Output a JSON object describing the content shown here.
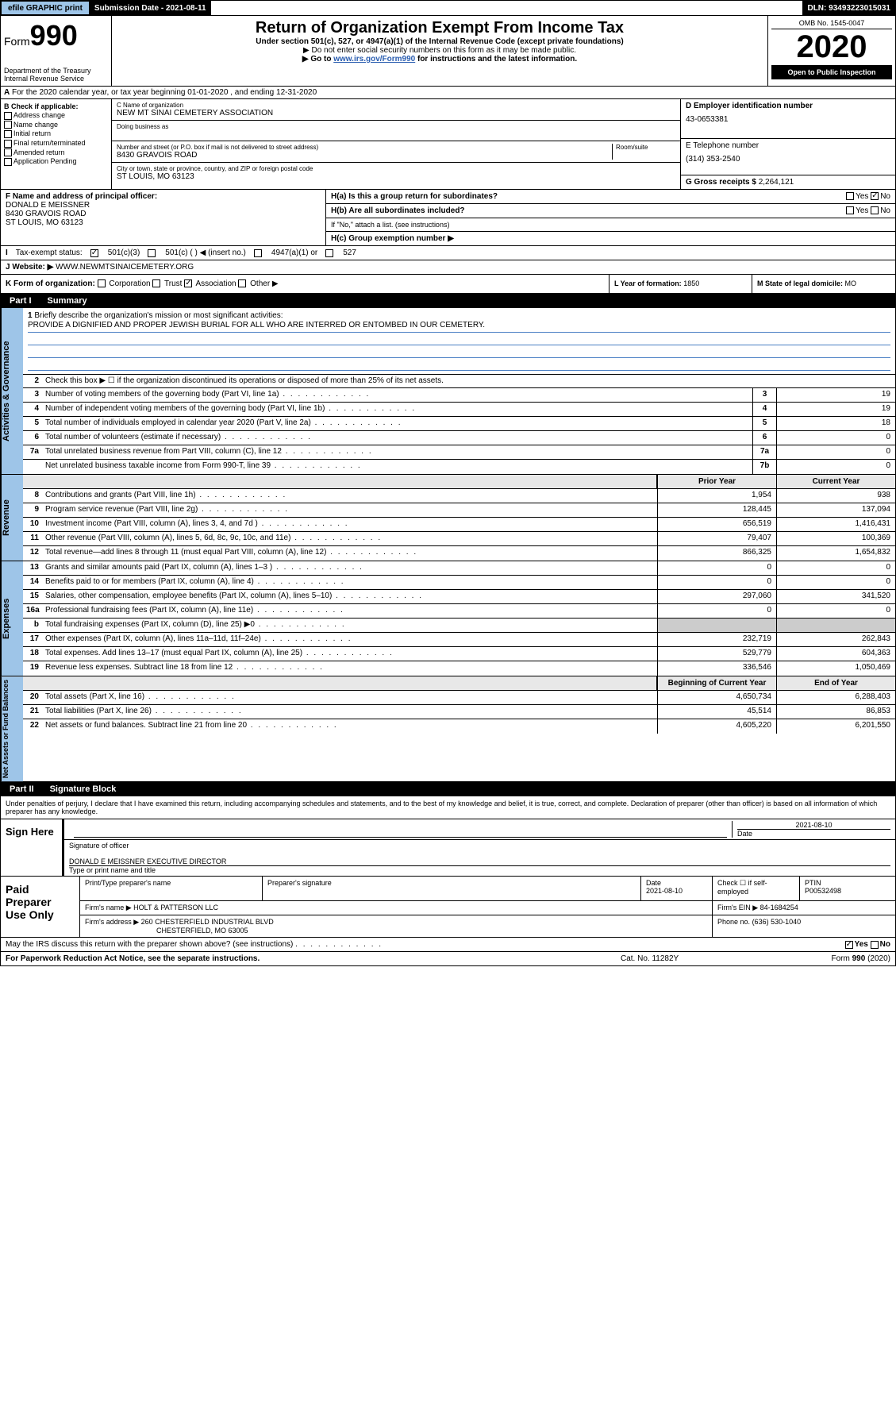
{
  "topbar": {
    "efile": "efile GRAPHIC print",
    "submission_label": "Submission Date - 2021-08-11",
    "dln": "DLN: 93493223015031"
  },
  "header": {
    "form_word": "Form",
    "form_num": "990",
    "dept": "Department of the Treasury",
    "irs": "Internal Revenue Service",
    "title": "Return of Organization Exempt From Income Tax",
    "subtitle": "Under section 501(c), 527, or 4947(a)(1) of the Internal Revenue Code (except private foundations)",
    "note1": "▶ Do not enter social security numbers on this form as it may be made public.",
    "note2_pre": "▶ Go to ",
    "note2_link": "www.irs.gov/Form990",
    "note2_post": " for instructions and the latest information.",
    "omb": "OMB No. 1545-0047",
    "year": "2020",
    "open": "Open to Public Inspection"
  },
  "section_a": "For the 2020 calendar year, or tax year beginning 01-01-2020   , and ending 12-31-2020",
  "box_b": {
    "label": "B Check if applicable:",
    "items": [
      "Address change",
      "Name change",
      "Initial return",
      "Final return/terminated",
      "Amended return",
      "Application Pending"
    ]
  },
  "box_c": {
    "name_label": "C Name of organization",
    "name": "NEW MT SINAI CEMETERY ASSOCIATION",
    "dba_label": "Doing business as",
    "addr_label": "Number and street (or P.O. box if mail is not delivered to street address)",
    "room_label": "Room/suite",
    "addr": "8430 GRAVOIS ROAD",
    "city_label": "City or town, state or province, country, and ZIP or foreign postal code",
    "city": "ST LOUIS, MO  63123"
  },
  "box_d": {
    "label": "D Employer identification number",
    "value": "43-0653381"
  },
  "box_e": {
    "label": "E Telephone number",
    "value": "(314) 353-2540"
  },
  "box_g": {
    "label": "G Gross receipts $",
    "value": "2,264,121"
  },
  "box_f": {
    "label": "F  Name and address of principal officer:",
    "name": "DONALD E MEISSNER",
    "addr1": "8430 GRAVOIS ROAD",
    "addr2": "ST LOUIS, MO  63123"
  },
  "box_h": {
    "a": "H(a)  Is this a group return for subordinates?",
    "b": "H(b)  Are all subordinates included?",
    "b_note": "If \"No,\" attach a list. (see instructions)",
    "c": "H(c)  Group exemption number ▶",
    "yes": "Yes",
    "no": "No"
  },
  "box_i": {
    "label": "Tax-exempt status:",
    "opts": [
      "501(c)(3)",
      "501(c) (  ) ◀ (insert no.)",
      "4947(a)(1) or",
      "527"
    ]
  },
  "box_j": {
    "label": "Website: ▶",
    "value": "WWW.NEWMTSINAICEMETERY.ORG"
  },
  "box_k": {
    "label": "K Form of organization:",
    "opts": [
      "Corporation",
      "Trust",
      "Association",
      "Other ▶"
    ]
  },
  "box_l": {
    "label": "L Year of formation:",
    "value": "1850"
  },
  "box_m": {
    "label": "M State of legal domicile:",
    "value": "MO"
  },
  "part1": {
    "tab": "Part I",
    "title": "Summary"
  },
  "summary": {
    "q1": "Briefly describe the organization's mission or most significant activities:",
    "mission": "PROVIDE A DIGNIFIED AND PROPER JEWISH BURIAL FOR ALL WHO ARE INTERRED OR ENTOMBED IN OUR CEMETERY.",
    "q2": "Check this box ▶ ☐  if the organization discontinued its operations or disposed of more than 25% of its net assets.",
    "lines": [
      {
        "n": "3",
        "t": "Number of voting members of the governing body (Part VI, line 1a)",
        "box": "3",
        "v": "19"
      },
      {
        "n": "4",
        "t": "Number of independent voting members of the governing body (Part VI, line 1b)",
        "box": "4",
        "v": "19"
      },
      {
        "n": "5",
        "t": "Total number of individuals employed in calendar year 2020 (Part V, line 2a)",
        "box": "5",
        "v": "18"
      },
      {
        "n": "6",
        "t": "Total number of volunteers (estimate if necessary)",
        "box": "6",
        "v": "0"
      },
      {
        "n": "7a",
        "t": "Total unrelated business revenue from Part VIII, column (C), line 12",
        "box": "7a",
        "v": "0"
      },
      {
        "n": "",
        "t": "Net unrelated business taxable income from Form 990-T, line 39",
        "box": "7b",
        "v": "0"
      }
    ],
    "hdr_prior": "Prior Year",
    "hdr_current": "Current Year",
    "revenue": [
      {
        "n": "8",
        "t": "Contributions and grants (Part VIII, line 1h)",
        "p": "1,954",
        "c": "938"
      },
      {
        "n": "9",
        "t": "Program service revenue (Part VIII, line 2g)",
        "p": "128,445",
        "c": "137,094"
      },
      {
        "n": "10",
        "t": "Investment income (Part VIII, column (A), lines 3, 4, and 7d )",
        "p": "656,519",
        "c": "1,416,431"
      },
      {
        "n": "11",
        "t": "Other revenue (Part VIII, column (A), lines 5, 6d, 8c, 9c, 10c, and 11e)",
        "p": "79,407",
        "c": "100,369"
      },
      {
        "n": "12",
        "t": "Total revenue—add lines 8 through 11 (must equal Part VIII, column (A), line 12)",
        "p": "866,325",
        "c": "1,654,832"
      }
    ],
    "expenses": [
      {
        "n": "13",
        "t": "Grants and similar amounts paid (Part IX, column (A), lines 1–3 )",
        "p": "0",
        "c": "0"
      },
      {
        "n": "14",
        "t": "Benefits paid to or for members (Part IX, column (A), line 4)",
        "p": "0",
        "c": "0"
      },
      {
        "n": "15",
        "t": "Salaries, other compensation, employee benefits (Part IX, column (A), lines 5–10)",
        "p": "297,060",
        "c": "341,520"
      },
      {
        "n": "16a",
        "t": "Professional fundraising fees (Part IX, column (A), line 11e)",
        "p": "0",
        "c": "0"
      },
      {
        "n": "b",
        "t": "Total fundraising expenses (Part IX, column (D), line 25) ▶0",
        "p": "",
        "c": ""
      },
      {
        "n": "17",
        "t": "Other expenses (Part IX, column (A), lines 11a–11d, 11f–24e)",
        "p": "232,719",
        "c": "262,843"
      },
      {
        "n": "18",
        "t": "Total expenses. Add lines 13–17 (must equal Part IX, column (A), line 25)",
        "p": "529,779",
        "c": "604,363"
      },
      {
        "n": "19",
        "t": "Revenue less expenses. Subtract line 18 from line 12",
        "p": "336,546",
        "c": "1,050,469"
      }
    ],
    "hdr_begin": "Beginning of Current Year",
    "hdr_end": "End of Year",
    "netassets": [
      {
        "n": "20",
        "t": "Total assets (Part X, line 16)",
        "p": "4,650,734",
        "c": "6,288,403"
      },
      {
        "n": "21",
        "t": "Total liabilities (Part X, line 26)",
        "p": "45,514",
        "c": "86,853"
      },
      {
        "n": "22",
        "t": "Net assets or fund balances. Subtract line 21 from line 20",
        "p": "4,605,220",
        "c": "6,201,550"
      }
    ]
  },
  "vtabs": {
    "gov": "Activities & Governance",
    "rev": "Revenue",
    "exp": "Expenses",
    "net": "Net Assets or Fund Balances"
  },
  "part2": {
    "tab": "Part II",
    "title": "Signature Block"
  },
  "sig": {
    "declare": "Under penalties of perjury, I declare that I have examined this return, including accompanying schedules and statements, and to the best of my knowledge and belief, it is true, correct, and complete. Declaration of preparer (other than officer) is based on all information of which preparer has any knowledge.",
    "sign_here": "Sign Here",
    "sig_label": "Signature of officer",
    "date_label": "Date",
    "date": "2021-08-10",
    "name": "DONALD E MEISSNER  EXECUTIVE DIRECTOR",
    "name_label": "Type or print name and title"
  },
  "paid": {
    "label": "Paid Preparer Use Only",
    "prep_name_label": "Print/Type preparer's name",
    "prep_sig_label": "Preparer's signature",
    "prep_date_label": "Date",
    "prep_date": "2021-08-10",
    "self_emp": "Check ☐ if self-employed",
    "ptin_label": "PTIN",
    "ptin": "P00532498",
    "firm_name_label": "Firm's name    ▶",
    "firm_name": "HOLT & PATTERSON LLC",
    "firm_ein_label": "Firm's EIN ▶",
    "firm_ein": "84-1684254",
    "firm_addr_label": "Firm's address ▶",
    "firm_addr1": "260 CHESTERFIELD INDUSTRIAL BLVD",
    "firm_addr2": "CHESTERFIELD, MO  63005",
    "phone_label": "Phone no.",
    "phone": "(636) 530-1040"
  },
  "footer": {
    "discuss": "May the IRS discuss this return with the preparer shown above? (see instructions)",
    "yes": "Yes",
    "no": "No",
    "paperwork": "For Paperwork Reduction Act Notice, see the separate instructions.",
    "cat": "Cat. No. 11282Y",
    "form": "Form 990 (2020)"
  }
}
